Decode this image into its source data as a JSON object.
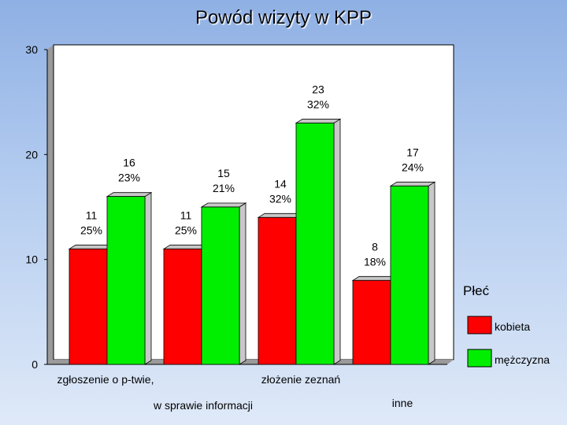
{
  "chart_data": {
    "type": "bar",
    "title": "Powód wizyty w KPP",
    "categories": [
      "zgłoszenie o p-twie,",
      "w sprawie informacji",
      "złożenie zeznań",
      "inne"
    ],
    "series": [
      {
        "name": "kobieta",
        "color": "#ff0000",
        "values": [
          11,
          11,
          14,
          8
        ],
        "labels": [
          [
            "11",
            "25%"
          ],
          [
            "11",
            "25%"
          ],
          [
            "14",
            "32%"
          ],
          [
            "8",
            "18%"
          ]
        ]
      },
      {
        "name": "mężczyzna",
        "color": "#00ee00",
        "values": [
          16,
          15,
          23,
          17
        ],
        "labels": [
          [
            "16",
            "23%"
          ],
          [
            "15",
            "21%"
          ],
          [
            "23",
            "32%"
          ],
          [
            "17",
            "24%"
          ]
        ]
      }
    ],
    "ylim": [
      0,
      30
    ],
    "yticks": [
      "0",
      "10",
      "20",
      "30"
    ],
    "grid": false,
    "legend": {
      "title": "Płeć",
      "position": "right"
    }
  }
}
